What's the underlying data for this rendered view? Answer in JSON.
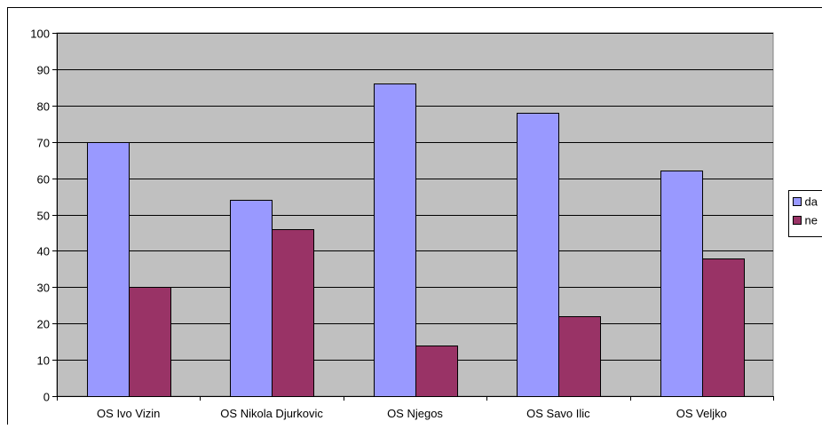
{
  "chart_data": {
    "type": "bar",
    "categories": [
      "OS Ivo Vizin",
      "OS Nikola Djurkovic",
      "OS Njegos",
      "OS Savo Ilic",
      "OS Veljko"
    ],
    "series": [
      {
        "name": "da",
        "values": [
          70,
          54,
          86,
          78,
          62
        ],
        "color": "#9999ff"
      },
      {
        "name": "ne",
        "values": [
          30,
          46,
          14,
          22,
          38
        ],
        "color": "#993366"
      }
    ],
    "ylim": [
      0,
      100
    ],
    "yticks": [
      0,
      10,
      20,
      30,
      40,
      50,
      60,
      70,
      80,
      90,
      100
    ],
    "grid": true,
    "plot_background": "#c0c0c0",
    "legend_position": "right"
  }
}
